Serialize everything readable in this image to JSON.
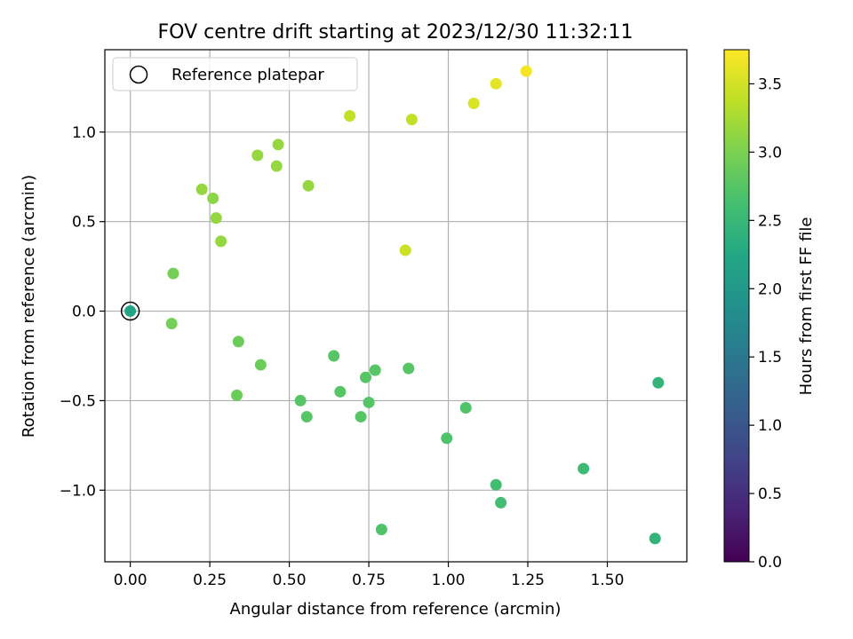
{
  "chart_data": {
    "type": "scatter",
    "title": "FOV centre drift starting at 2023/12/30 11:32:11",
    "xlabel": "Angular distance from reference (arcmin)",
    "ylabel": "Rotation from reference (arcmin)",
    "colorbar_label": "Hours from first FF file",
    "xlim": [
      -0.08,
      1.75
    ],
    "ylim": [
      -1.4,
      1.46
    ],
    "clim": [
      0.0,
      3.75
    ],
    "xticks": [
      "0.00",
      "0.25",
      "0.50",
      "0.75",
      "1.00",
      "1.25",
      "1.50"
    ],
    "yticks": [
      "−1.0",
      "−0.5",
      "0.0",
      "0.5",
      "1.0"
    ],
    "cticks": [
      "0.0",
      "0.5",
      "1.0",
      "1.5",
      "2.0",
      "2.5",
      "3.0",
      "3.5"
    ],
    "grid": true,
    "colormap": "viridis",
    "legend": {
      "placement": "upper-left",
      "label": "Reference platepar"
    },
    "reference_point": {
      "x": 0.0,
      "y": 0.0
    },
    "points": [
      {
        "x": 0.0,
        "y": 0.0,
        "h": 2.2
      },
      {
        "x": 0.13,
        "y": -0.07,
        "h": 2.95
      },
      {
        "x": 0.135,
        "y": 0.21,
        "h": 2.95
      },
      {
        "x": 0.225,
        "y": 0.68,
        "h": 3.15
      },
      {
        "x": 0.26,
        "y": 0.63,
        "h": 3.1
      },
      {
        "x": 0.27,
        "y": 0.52,
        "h": 3.15
      },
      {
        "x": 0.285,
        "y": 0.39,
        "h": 3.15
      },
      {
        "x": 0.4,
        "y": 0.87,
        "h": 3.15
      },
      {
        "x": 0.46,
        "y": 0.81,
        "h": 3.15
      },
      {
        "x": 0.465,
        "y": 0.93,
        "h": 3.15
      },
      {
        "x": 0.56,
        "y": 0.7,
        "h": 3.15
      },
      {
        "x": 0.69,
        "y": 1.09,
        "h": 3.4
      },
      {
        "x": 0.885,
        "y": 1.07,
        "h": 3.4
      },
      {
        "x": 0.865,
        "y": 0.34,
        "h": 3.45
      },
      {
        "x": 1.08,
        "y": 1.16,
        "h": 3.55
      },
      {
        "x": 1.15,
        "y": 1.27,
        "h": 3.6
      },
      {
        "x": 1.245,
        "y": 1.34,
        "h": 3.7
      },
      {
        "x": 0.34,
        "y": -0.17,
        "h": 2.9
      },
      {
        "x": 0.41,
        "y": -0.3,
        "h": 2.9
      },
      {
        "x": 0.335,
        "y": -0.47,
        "h": 2.9
      },
      {
        "x": 0.535,
        "y": -0.5,
        "h": 2.75
      },
      {
        "x": 0.555,
        "y": -0.59,
        "h": 2.75
      },
      {
        "x": 0.64,
        "y": -0.25,
        "h": 2.75
      },
      {
        "x": 0.66,
        "y": -0.45,
        "h": 2.75
      },
      {
        "x": 0.725,
        "y": -0.59,
        "h": 2.75
      },
      {
        "x": 0.74,
        "y": -0.37,
        "h": 2.75
      },
      {
        "x": 0.75,
        "y": -0.51,
        "h": 2.75
      },
      {
        "x": 0.77,
        "y": -0.33,
        "h": 2.75
      },
      {
        "x": 0.875,
        "y": -0.32,
        "h": 2.75
      },
      {
        "x": 0.79,
        "y": -1.22,
        "h": 2.7
      },
      {
        "x": 0.995,
        "y": -0.71,
        "h": 2.7
      },
      {
        "x": 1.055,
        "y": -0.54,
        "h": 2.7
      },
      {
        "x": 1.15,
        "y": -0.97,
        "h": 2.6
      },
      {
        "x": 1.165,
        "y": -1.07,
        "h": 2.6
      },
      {
        "x": 1.425,
        "y": -0.88,
        "h": 2.55
      },
      {
        "x": 1.66,
        "y": -0.4,
        "h": 2.45
      },
      {
        "x": 1.65,
        "y": -1.27,
        "h": 2.45
      }
    ]
  }
}
